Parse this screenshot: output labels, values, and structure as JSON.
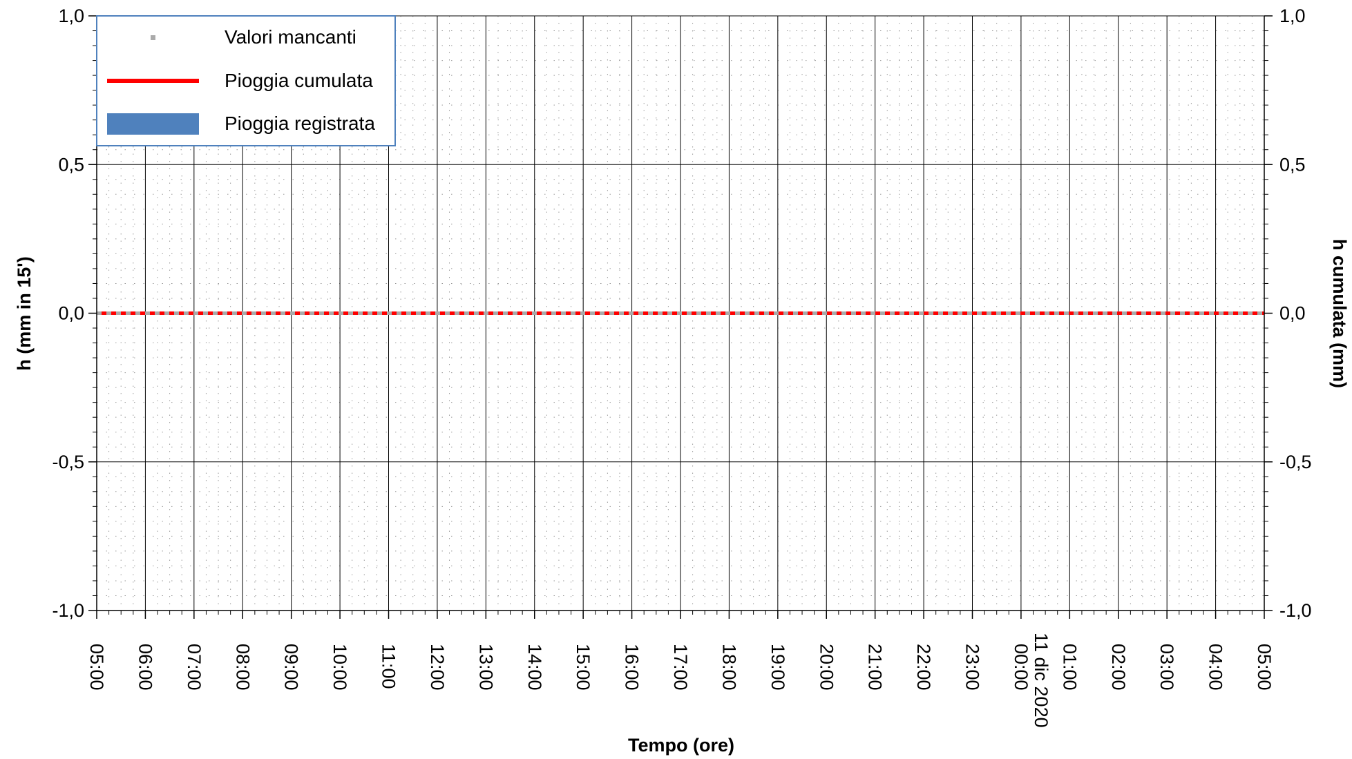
{
  "chart_data": {
    "type": "line",
    "title": "",
    "xlabel": "Tempo (ore)",
    "ylabel_left": "h (mm in 15')",
    "ylabel_right": "h cumulata (mm)",
    "ylim": [
      -1.0,
      1.0
    ],
    "y_ticks": [
      "-1,0",
      "-0,5",
      "0,0",
      "0,5",
      "1,0"
    ],
    "y_tick_values": [
      -1.0,
      -0.5,
      0.0,
      0.5,
      1.0
    ],
    "x_ticks": [
      "05:00",
      "06:00",
      "07:00",
      "08:00",
      "09:00",
      "10:00",
      "11:00",
      "12:00",
      "13:00",
      "14:00",
      "15:00",
      "16:00",
      "17:00",
      "18:00",
      "19:00",
      "20:00",
      "21:00",
      "22:00",
      "23:00",
      "00:00",
      "01:00",
      "02:00",
      "03:00",
      "04:00",
      "05:00"
    ],
    "date_label": "11 dic 2020",
    "date_label_at_tick": "00:00",
    "grid": true,
    "legend_position": "top-left",
    "legend": [
      {
        "name": "Valori mancanti",
        "kind": "marker",
        "color": "#aaaaaa"
      },
      {
        "name": "Pioggia cumulata",
        "kind": "line",
        "color": "#ff0000"
      },
      {
        "name": "Pioggia registrata",
        "kind": "bar",
        "color": "#4f81bd"
      }
    ],
    "series": [
      {
        "name": "Pioggia cumulata",
        "color": "#ff0000",
        "values": [
          0,
          0,
          0,
          0,
          0,
          0,
          0,
          0,
          0,
          0,
          0,
          0,
          0,
          0,
          0,
          0,
          0,
          0,
          0,
          0,
          0,
          0,
          0,
          0,
          0
        ]
      },
      {
        "name": "Pioggia registrata",
        "color": "#4f81bd",
        "values": [
          0,
          0,
          0,
          0,
          0,
          0,
          0,
          0,
          0,
          0,
          0,
          0,
          0,
          0,
          0,
          0,
          0,
          0,
          0,
          0,
          0,
          0,
          0,
          0,
          0
        ]
      }
    ],
    "missing_values_color": "#aaaaaa"
  }
}
